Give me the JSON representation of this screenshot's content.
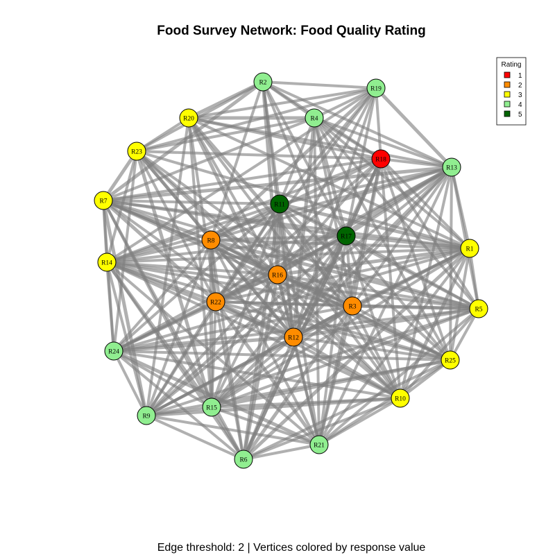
{
  "title": "Food Survey Network: Food Quality Rating",
  "caption": "Edge threshold: 2 | Vertices colored by response value",
  "legend": {
    "title": "Rating",
    "items": [
      {
        "label": "1",
        "color": "#ff0000"
      },
      {
        "label": "2",
        "color": "#ff8c00"
      },
      {
        "label": "3",
        "color": "#ffff00"
      },
      {
        "label": "4",
        "color": "#90ee90"
      },
      {
        "label": "5",
        "color": "#006400"
      }
    ]
  },
  "colors": {
    "1": "#ff0000",
    "2": "#ff8c00",
    "3": "#ffff00",
    "4": "#90ee90",
    "5": "#006400",
    "edge": "#808080"
  },
  "nodes": [
    {
      "id": "R1",
      "rating": 3
    },
    {
      "id": "R2",
      "rating": 4
    },
    {
      "id": "R3",
      "rating": 2
    },
    {
      "id": "R4",
      "rating": 4
    },
    {
      "id": "R5",
      "rating": 3
    },
    {
      "id": "R6",
      "rating": 4
    },
    {
      "id": "R7",
      "rating": 3
    },
    {
      "id": "R8",
      "rating": 2
    },
    {
      "id": "R9",
      "rating": 4
    },
    {
      "id": "R10",
      "rating": 3
    },
    {
      "id": "R11",
      "rating": 5
    },
    {
      "id": "R12",
      "rating": 2
    },
    {
      "id": "R13",
      "rating": 4
    },
    {
      "id": "R14",
      "rating": 3
    },
    {
      "id": "R15",
      "rating": 4
    },
    {
      "id": "R16",
      "rating": 2
    },
    {
      "id": "R17",
      "rating": 5
    },
    {
      "id": "R18",
      "rating": 1
    },
    {
      "id": "R19",
      "rating": 4
    },
    {
      "id": "R20",
      "rating": 3
    },
    {
      "id": "R21",
      "rating": 4
    },
    {
      "id": "R22",
      "rating": 2
    },
    {
      "id": "R23",
      "rating": 3
    },
    {
      "id": "R24",
      "rating": 4
    },
    {
      "id": "R25",
      "rating": 3
    }
  ],
  "edges": [
    [
      "R2",
      "R20"
    ],
    [
      "R2",
      "R4"
    ],
    [
      "R2",
      "R19"
    ],
    [
      "R2",
      "R18"
    ],
    [
      "R2",
      "R23"
    ],
    [
      "R2",
      "R7"
    ],
    [
      "R2",
      "R11"
    ],
    [
      "R2",
      "R17"
    ],
    [
      "R2",
      "R13"
    ],
    [
      "R2",
      "R8"
    ],
    [
      "R2",
      "R16"
    ],
    [
      "R2",
      "R12"
    ],
    [
      "R2",
      "R3"
    ],
    [
      "R19",
      "R4"
    ],
    [
      "R19",
      "R18"
    ],
    [
      "R19",
      "R13"
    ],
    [
      "R19",
      "R20"
    ],
    [
      "R19",
      "R23"
    ],
    [
      "R19",
      "R11"
    ],
    [
      "R19",
      "R17"
    ],
    [
      "R19",
      "R8"
    ],
    [
      "R19",
      "R14"
    ],
    [
      "R19",
      "R16"
    ],
    [
      "R19",
      "R22"
    ],
    [
      "R19",
      "R12"
    ],
    [
      "R20",
      "R4"
    ],
    [
      "R20",
      "R23"
    ],
    [
      "R20",
      "R18"
    ],
    [
      "R20",
      "R13"
    ],
    [
      "R20",
      "R16"
    ],
    [
      "R20",
      "R12"
    ],
    [
      "R20",
      "R22"
    ],
    [
      "R20",
      "R15"
    ],
    [
      "R20",
      "R9"
    ],
    [
      "R20",
      "R1"
    ],
    [
      "R20",
      "R3"
    ],
    [
      "R20",
      "R10"
    ],
    [
      "R4",
      "R18"
    ],
    [
      "R4",
      "R13"
    ],
    [
      "R4",
      "R11"
    ],
    [
      "R4",
      "R17"
    ],
    [
      "R4",
      "R1"
    ],
    [
      "R4",
      "R5"
    ],
    [
      "R4",
      "R3"
    ],
    [
      "R4",
      "R25"
    ],
    [
      "R4",
      "R12"
    ],
    [
      "R4",
      "R21"
    ],
    [
      "R4",
      "R23"
    ],
    [
      "R4",
      "R7"
    ],
    [
      "R23",
      "R18"
    ],
    [
      "R23",
      "R7"
    ],
    [
      "R23",
      "R14"
    ],
    [
      "R23",
      "R8"
    ],
    [
      "R23",
      "R16"
    ],
    [
      "R23",
      "R22"
    ],
    [
      "R23",
      "R12"
    ],
    [
      "R23",
      "R3"
    ],
    [
      "R23",
      "R1"
    ],
    [
      "R23",
      "R10"
    ],
    [
      "R23",
      "R24"
    ],
    [
      "R23",
      "R15"
    ],
    [
      "R18",
      "R13"
    ],
    [
      "R18",
      "R1"
    ],
    [
      "R18",
      "R5"
    ],
    [
      "R18",
      "R17"
    ],
    [
      "R18",
      "R3"
    ],
    [
      "R18",
      "R25"
    ],
    [
      "R18",
      "R10"
    ],
    [
      "R18",
      "R7"
    ],
    [
      "R18",
      "R14"
    ],
    [
      "R18",
      "R8"
    ],
    [
      "R18",
      "R16"
    ],
    [
      "R18",
      "R22"
    ],
    [
      "R18",
      "R12"
    ],
    [
      "R18",
      "R21"
    ],
    [
      "R18",
      "R6"
    ],
    [
      "R13",
      "R1"
    ],
    [
      "R13",
      "R5"
    ],
    [
      "R13",
      "R17"
    ],
    [
      "R13",
      "R11"
    ],
    [
      "R13",
      "R7"
    ],
    [
      "R13",
      "R14"
    ],
    [
      "R13",
      "R8"
    ],
    [
      "R13",
      "R16"
    ],
    [
      "R13",
      "R3"
    ],
    [
      "R13",
      "R22"
    ],
    [
      "R13",
      "R12"
    ],
    [
      "R13",
      "R25"
    ],
    [
      "R13",
      "R10"
    ],
    [
      "R13",
      "R21"
    ],
    [
      "R13",
      "R15"
    ],
    [
      "R13",
      "R9"
    ],
    [
      "R13",
      "R24"
    ],
    [
      "R7",
      "R14"
    ],
    [
      "R7",
      "R24"
    ],
    [
      "R7",
      "R8"
    ],
    [
      "R7",
      "R11"
    ],
    [
      "R7",
      "R17"
    ],
    [
      "R7",
      "R1"
    ],
    [
      "R7",
      "R16"
    ],
    [
      "R7",
      "R22"
    ],
    [
      "R7",
      "R12"
    ],
    [
      "R7",
      "R3"
    ],
    [
      "R7",
      "R5"
    ],
    [
      "R7",
      "R25"
    ],
    [
      "R7",
      "R9"
    ],
    [
      "R7",
      "R15"
    ],
    [
      "R7",
      "R6"
    ],
    [
      "R11",
      "R8"
    ],
    [
      "R11",
      "R17"
    ],
    [
      "R11",
      "R16"
    ],
    [
      "R11",
      "R14"
    ],
    [
      "R11",
      "R22"
    ],
    [
      "R11",
      "R12"
    ],
    [
      "R11",
      "R3"
    ],
    [
      "R11",
      "R1"
    ],
    [
      "R11",
      "R5"
    ],
    [
      "R11",
      "R25"
    ],
    [
      "R11",
      "R10"
    ],
    [
      "R11",
      "R21"
    ],
    [
      "R11",
      "R6"
    ],
    [
      "R11",
      "R15"
    ],
    [
      "R11",
      "R9"
    ],
    [
      "R11",
      "R24"
    ],
    [
      "R17",
      "R8"
    ],
    [
      "R17",
      "R1"
    ],
    [
      "R17",
      "R5"
    ],
    [
      "R17",
      "R16"
    ],
    [
      "R17",
      "R3"
    ],
    [
      "R17",
      "R22"
    ],
    [
      "R17",
      "R12"
    ],
    [
      "R17",
      "R14"
    ],
    [
      "R17",
      "R24"
    ],
    [
      "R17",
      "R9"
    ],
    [
      "R17",
      "R15"
    ],
    [
      "R17",
      "R6"
    ],
    [
      "R17",
      "R21"
    ],
    [
      "R17",
      "R10"
    ],
    [
      "R17",
      "R25"
    ],
    [
      "R8",
      "R14"
    ],
    [
      "R8",
      "R22"
    ],
    [
      "R8",
      "R16"
    ],
    [
      "R8",
      "R12"
    ],
    [
      "R8",
      "R3"
    ],
    [
      "R8",
      "R1"
    ],
    [
      "R8",
      "R5"
    ],
    [
      "R8",
      "R25"
    ],
    [
      "R8",
      "R10"
    ],
    [
      "R8",
      "R21"
    ],
    [
      "R8",
      "R6"
    ],
    [
      "R8",
      "R15"
    ],
    [
      "R8",
      "R9"
    ],
    [
      "R8",
      "R24"
    ],
    [
      "R1",
      "R5"
    ],
    [
      "R1",
      "R25"
    ],
    [
      "R1",
      "R16"
    ],
    [
      "R1",
      "R3"
    ],
    [
      "R1",
      "R14"
    ],
    [
      "R1",
      "R22"
    ],
    [
      "R1",
      "R12"
    ],
    [
      "R1",
      "R10"
    ],
    [
      "R1",
      "R21"
    ],
    [
      "R1",
      "R15"
    ],
    [
      "R1",
      "R9"
    ],
    [
      "R1",
      "R24"
    ],
    [
      "R1",
      "R6"
    ],
    [
      "R14",
      "R24"
    ],
    [
      "R14",
      "R22"
    ],
    [
      "R14",
      "R16"
    ],
    [
      "R14",
      "R3"
    ],
    [
      "R14",
      "R12"
    ],
    [
      "R14",
      "R5"
    ],
    [
      "R14",
      "R25"
    ],
    [
      "R14",
      "R10"
    ],
    [
      "R14",
      "R9"
    ],
    [
      "R14",
      "R15"
    ],
    [
      "R14",
      "R6"
    ],
    [
      "R14",
      "R21"
    ],
    [
      "R16",
      "R22"
    ],
    [
      "R16",
      "R3"
    ],
    [
      "R16",
      "R12"
    ],
    [
      "R16",
      "R5"
    ],
    [
      "R16",
      "R25"
    ],
    [
      "R16",
      "R10"
    ],
    [
      "R16",
      "R21"
    ],
    [
      "R16",
      "R6"
    ],
    [
      "R16",
      "R15"
    ],
    [
      "R16",
      "R9"
    ],
    [
      "R16",
      "R24"
    ],
    [
      "R22",
      "R3"
    ],
    [
      "R22",
      "R12"
    ],
    [
      "R22",
      "R24"
    ],
    [
      "R22",
      "R9"
    ],
    [
      "R22",
      "R15"
    ],
    [
      "R22",
      "R6"
    ],
    [
      "R22",
      "R21"
    ],
    [
      "R22",
      "R10"
    ],
    [
      "R22",
      "R25"
    ],
    [
      "R22",
      "R5"
    ],
    [
      "R3",
      "R12"
    ],
    [
      "R3",
      "R5"
    ],
    [
      "R3",
      "R25"
    ],
    [
      "R3",
      "R10"
    ],
    [
      "R3",
      "R21"
    ],
    [
      "R3",
      "R15"
    ],
    [
      "R3",
      "R6"
    ],
    [
      "R3",
      "R9"
    ],
    [
      "R3",
      "R24"
    ],
    [
      "R5",
      "R25"
    ],
    [
      "R5",
      "R10"
    ],
    [
      "R5",
      "R12"
    ],
    [
      "R5",
      "R21"
    ],
    [
      "R5",
      "R15"
    ],
    [
      "R5",
      "R24"
    ],
    [
      "R5",
      "R9"
    ],
    [
      "R12",
      "R24"
    ],
    [
      "R12",
      "R9"
    ],
    [
      "R12",
      "R15"
    ],
    [
      "R12",
      "R6"
    ],
    [
      "R12",
      "R21"
    ],
    [
      "R12",
      "R10"
    ],
    [
      "R12",
      "R25"
    ],
    [
      "R24",
      "R9"
    ],
    [
      "R24",
      "R15"
    ],
    [
      "R24",
      "R6"
    ],
    [
      "R24",
      "R21"
    ],
    [
      "R24",
      "R10"
    ],
    [
      "R24",
      "R25"
    ],
    [
      "R25",
      "R10"
    ],
    [
      "R25",
      "R21"
    ],
    [
      "R25",
      "R15"
    ],
    [
      "R25",
      "R9"
    ],
    [
      "R25",
      "R6"
    ],
    [
      "R10",
      "R21"
    ],
    [
      "R10",
      "R15"
    ],
    [
      "R10",
      "R9"
    ],
    [
      "R10",
      "R6"
    ],
    [
      "R9",
      "R15"
    ],
    [
      "R9",
      "R6"
    ],
    [
      "R9",
      "R21"
    ],
    [
      "R15",
      "R6"
    ],
    [
      "R15",
      "R21"
    ],
    [
      "R6",
      "R21"
    ]
  ]
}
